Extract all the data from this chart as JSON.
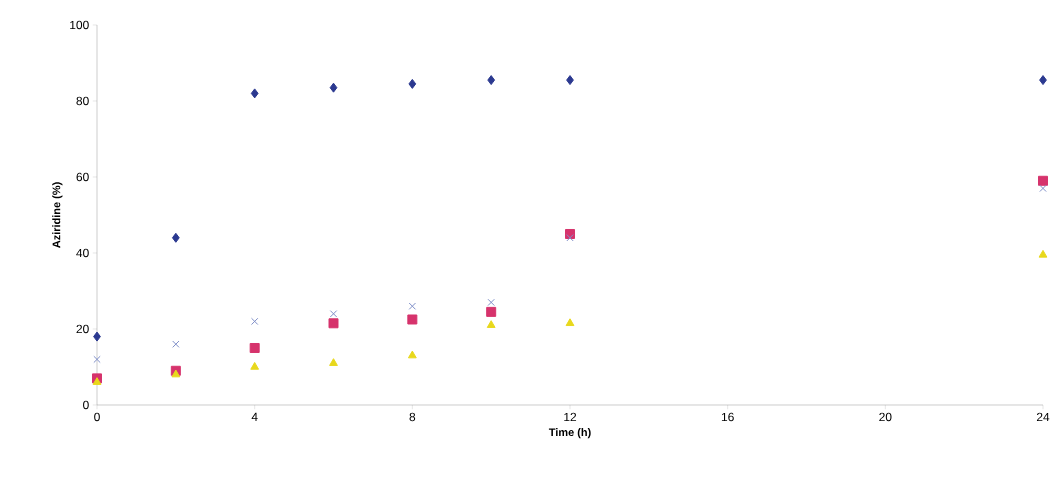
{
  "chart_data": {
    "type": "scatter",
    "xlabel": "Time (h)",
    "ylabel": "Aziridine (%)",
    "x": [
      0,
      2,
      4,
      6,
      8,
      10,
      12,
      24
    ],
    "series": [
      {
        "color": "#2b3990",
        "marker": "diamond",
        "values": [
          18,
          44,
          82,
          83.5,
          84.5,
          85.5,
          85.5,
          85.5
        ]
      },
      {
        "color": "#d6336c",
        "marker": "square",
        "values": [
          7,
          9,
          15,
          21.5,
          22.5,
          24.5,
          45,
          59
        ]
      },
      {
        "color": "#7f8fc8",
        "marker": "cross",
        "values": [
          12,
          16,
          22,
          24,
          26,
          27,
          44,
          57
        ]
      },
      {
        "color": "#e8d81c",
        "marker": "triangle",
        "values": [
          6,
          8,
          10,
          11,
          13,
          21,
          21.5,
          39.5
        ]
      }
    ],
    "xlim": [
      0,
      24
    ],
    "xticks": [
      0,
      4,
      8,
      12,
      16,
      20,
      24
    ],
    "ylim": [
      0,
      100
    ],
    "yticks": [
      0,
      20,
      40,
      60,
      80,
      100
    ],
    "grid": false
  }
}
